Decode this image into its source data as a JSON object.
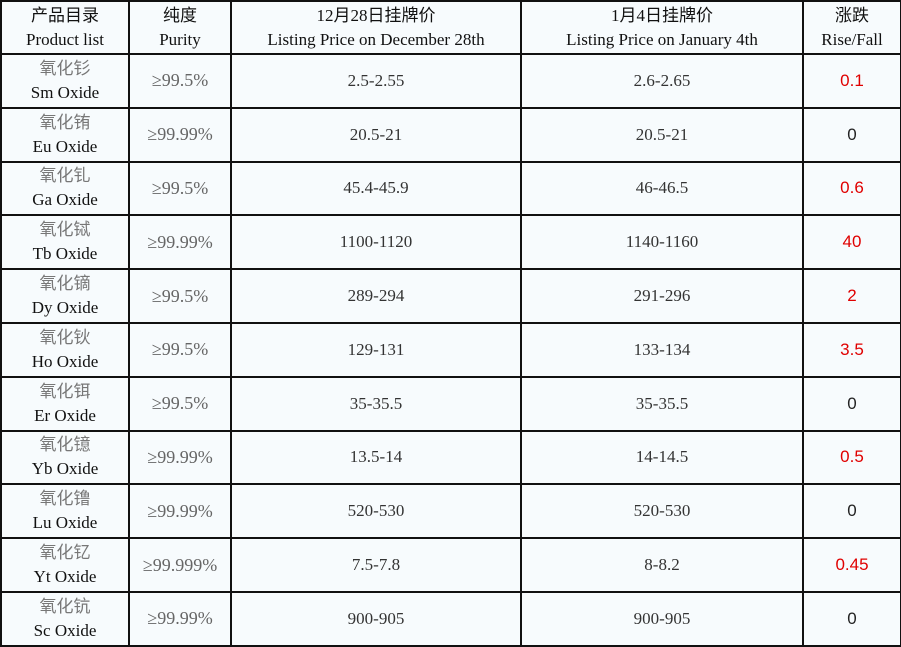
{
  "header": {
    "product": {
      "cn": "产品目录",
      "en": "Product list"
    },
    "purity": {
      "cn": "纯度",
      "en": "Purity"
    },
    "price1": {
      "cn": "12月28日挂牌价",
      "en": "Listing Price on December 28th"
    },
    "price2": {
      "cn": "1月4日挂牌价",
      "en": "Listing Price on January 4th"
    },
    "change": {
      "cn": "涨跌",
      "en": "Rise/Fall"
    }
  },
  "colors": {
    "rise": "#e00000",
    "neutral": "#222222"
  },
  "rows": [
    {
      "cn": "氧化钐",
      "en": "Sm Oxide",
      "purity": "≥99.5%",
      "price1": "2.5-2.55",
      "price2": "2.6-2.65",
      "change": "0.1"
    },
    {
      "cn": "氧化铕",
      "en": "Eu Oxide",
      "purity": "≥99.99%",
      "price1": "20.5-21",
      "price2": "20.5-21",
      "change": "0"
    },
    {
      "cn": "氧化钆",
      "en": "Ga Oxide",
      "purity": "≥99.5%",
      "price1": "45.4-45.9",
      "price2": "46-46.5",
      "change": "0.6"
    },
    {
      "cn": "氧化铽",
      "en": "Tb Oxide",
      "purity": "≥99.99%",
      "price1": "1100-1120",
      "price2": "1140-1160",
      "change": "40"
    },
    {
      "cn": "氧化镝",
      "en": "Dy Oxide",
      "purity": "≥99.5%",
      "price1": "289-294",
      "price2": "291-296",
      "change": "2"
    },
    {
      "cn": "氧化钬",
      "en": "Ho Oxide",
      "purity": "≥99.5%",
      "price1": "129-131",
      "price2": "133-134",
      "change": "3.5"
    },
    {
      "cn": "氧化铒",
      "en": "Er Oxide",
      "purity": "≥99.5%",
      "price1": "35-35.5",
      "price2": "35-35.5",
      "change": "0"
    },
    {
      "cn": "氧化镱",
      "en": "Yb Oxide",
      "purity": "≥99.99%",
      "price1": "13.5-14",
      "price2": "14-14.5",
      "change": "0.5"
    },
    {
      "cn": "氧化镥",
      "en": "Lu Oxide",
      "purity": "≥99.99%",
      "price1": "520-530",
      "price2": "520-530",
      "change": "0"
    },
    {
      "cn": "氧化钇",
      "en": "Yt Oxide",
      "purity": "≥99.999%",
      "price1": "7.5-7.8",
      "price2": "8-8.2",
      "change": "0.45"
    },
    {
      "cn": "氧化钪",
      "en": "Sc Oxide",
      "purity": "≥99.99%",
      "price1": "900-905",
      "price2": "900-905",
      "change": "0"
    }
  ]
}
